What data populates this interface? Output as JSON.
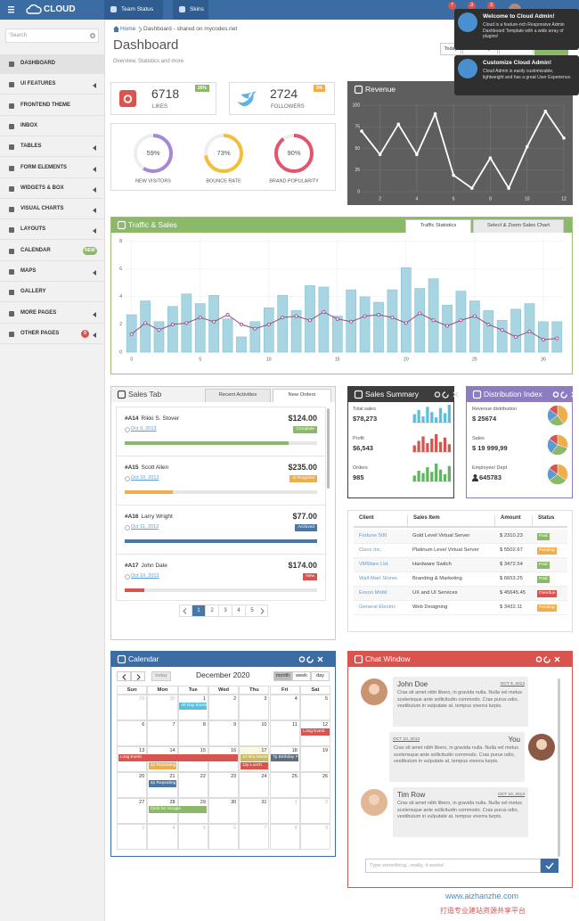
{
  "header": {
    "brand": "CLOUD",
    "menus": [
      "Team Status",
      "Skins"
    ],
    "badges": [
      "7",
      "3",
      "3"
    ]
  },
  "notifications": [
    {
      "title": "Welcome to Cloud Admin!",
      "text": "Cloud is a feature-rich Responsive Admin Dashboard Template with a wide array of plugins!"
    },
    {
      "title": "Customize Cloud Admin!",
      "text": "Cloud Admin is easily customizable, lightweight and has a great User Experience."
    }
  ],
  "sidebar": {
    "search": "Search",
    "items": [
      {
        "label": "DASHBOARD",
        "active": true
      },
      {
        "label": "UI FEATURES",
        "submenu": true
      },
      {
        "label": "FRONTEND THEME"
      },
      {
        "label": "INBOX"
      },
      {
        "label": "TABLES",
        "submenu": true
      },
      {
        "label": "FORM ELEMENTS",
        "submenu": true
      },
      {
        "label": "WIDGETS & BOX",
        "submenu": true
      },
      {
        "label": "VISUAL CHARTS",
        "submenu": true
      },
      {
        "label": "LAYOUTS",
        "submenu": true
      },
      {
        "label": "CALENDAR",
        "badge": "NEW",
        "badge_color": "#8cb86a"
      },
      {
        "label": "MAPS",
        "submenu": true
      },
      {
        "label": "GALLERY"
      },
      {
        "label": "MORE PAGES",
        "submenu": true
      },
      {
        "label": "OTHER PAGES",
        "submenu": true,
        "badge": "9",
        "badge_color": "#d9534f"
      }
    ]
  },
  "page": {
    "breadcrumb": [
      "Home",
      "Dashboard - shared on mycodes.net"
    ],
    "title": "Dashboard",
    "subtitle": "Overview, Statistics and more",
    "range_buttons": [
      "Today",
      "Last 7 Days",
      "Last month"
    ]
  },
  "social": [
    {
      "value": "6718",
      "label": "LIKES",
      "change": "26%",
      "color": "#8cb86a"
    },
    {
      "value": "2724",
      "label": "FOLLOWERS",
      "change": "5%",
      "color": "#f0ad4e"
    }
  ],
  "panels": {
    "sales_tab": "Sales Tab",
    "sales_tabs": [
      "Recent Activities",
      "New Orders"
    ],
    "sales_summary": "Sales Summary",
    "distribution": "Distribution Index"
  },
  "chart_data": [
    {
      "type": "donut",
      "categories": [
        "NEW VISITORS",
        "BOUNCE RATE",
        "BRAND POPULARITY"
      ],
      "values": [
        59,
        73,
        90
      ],
      "value_labels": [
        "59%",
        "73%",
        "90%"
      ],
      "colors": [
        "#a48ad4",
        "#f2c037",
        "#e2566d"
      ]
    },
    {
      "type": "line",
      "title": "Revenue",
      "x": [
        1,
        2,
        3,
        4,
        5,
        6,
        7,
        8,
        9,
        10,
        11,
        12
      ],
      "series": [
        {
          "color": "#ffffff",
          "values": [
            70,
            43,
            78,
            43,
            90,
            19,
            4,
            39,
            4,
            52,
            93,
            62
          ]
        }
      ],
      "xlim": [
        1,
        12
      ],
      "ylim": [
        0,
        100
      ],
      "xticks": [
        2,
        4,
        6,
        8,
        10,
        12
      ],
      "yticks": [
        0,
        25,
        50,
        75,
        100
      ],
      "grid": true
    },
    {
      "type": "combo",
      "title": "Traffic & Sales",
      "tabs": [
        "Traffic Statistics",
        "Select & Zoom Sales Chart"
      ],
      "x": [
        0,
        1,
        2,
        3,
        4,
        5,
        6,
        7,
        8,
        9,
        10,
        11,
        12,
        13,
        14,
        15,
        16,
        17,
        18,
        19,
        20,
        21,
        22,
        23,
        24,
        25,
        26,
        27,
        28,
        29,
        30,
        31
      ],
      "series": [
        {
          "type": "bar",
          "color": "#a8d5e2",
          "values": [
            2.7,
            3.7,
            2.2,
            3.3,
            4.2,
            3.5,
            4.1,
            2.4,
            1.1,
            2.2,
            3.2,
            4.1,
            3.0,
            4.8,
            4.7,
            2.6,
            4.5,
            4.0,
            3.6,
            4.5,
            6.1,
            4.6,
            5.3,
            3.4,
            4.4,
            3.7,
            3.0,
            2.3,
            3.1,
            3.5,
            2.2,
            2.2
          ]
        },
        {
          "type": "line",
          "color": "#9c4a7f",
          "values": [
            1.3,
            2.1,
            1.6,
            2.0,
            2.1,
            2.5,
            2.2,
            2.7,
            2.0,
            1.7,
            2.0,
            2.5,
            2.6,
            2.3,
            2.9,
            2.4,
            2.2,
            2.6,
            2.7,
            2.5,
            2.1,
            2.8,
            2.3,
            1.9,
            2.3,
            2.6,
            2.0,
            1.6,
            1.1,
            1.5,
            0.9,
            1.0
          ]
        }
      ],
      "xlim": [
        -0.5,
        31.5
      ],
      "ylim": [
        0,
        8.3
      ],
      "xticks": [
        0,
        5,
        10,
        15,
        20,
        25,
        30
      ],
      "yticks": [
        0,
        2,
        4,
        6,
        8
      ],
      "grid": true
    },
    {
      "type": "bar",
      "label": "Total sales",
      "value_label": "$78,273",
      "color": "#5bc0de",
      "values": [
        8,
        12,
        6,
        15,
        10,
        5,
        14,
        9,
        17
      ]
    },
    {
      "type": "bar",
      "label": "Profit",
      "value_label": "$6,543",
      "color": "#d9534f",
      "values": [
        6,
        10,
        14,
        8,
        12,
        16,
        9,
        13,
        7
      ]
    },
    {
      "type": "bar",
      "label": "Orders",
      "value_label": "985",
      "color": "#5cb85c",
      "values": [
        5,
        9,
        7,
        12,
        8,
        15,
        10,
        6,
        13
      ]
    },
    {
      "type": "pie",
      "label": "Revenue distribution",
      "value_label": "$ 25674",
      "values": [
        40,
        25,
        20,
        15
      ],
      "colors": [
        "#f0ad4e",
        "#8cb86a",
        "#5b9bd5",
        "#d9534f"
      ]
    },
    {
      "type": "pie",
      "label": "Sales",
      "value_label": "$ 19 999,99",
      "values": [
        30,
        30,
        25,
        15
      ],
      "colors": [
        "#f0ad4e",
        "#8cb86a",
        "#5b9bd5",
        "#d9534f"
      ]
    },
    {
      "type": "pie",
      "label": "Employee/ Dept",
      "value_label": "645783",
      "values": [
        35,
        30,
        20,
        15
      ],
      "colors": [
        "#f0ad4e",
        "#8cb86a",
        "#5b9bd5",
        "#d9534f"
      ]
    }
  ],
  "orders": [
    {
      "id": "#A14",
      "name": "Rikki S. Stover",
      "amount": "$124.00",
      "date": "Oct 9, 2013",
      "status": "Complete",
      "color": "#8cb86a",
      "progress": 85
    },
    {
      "id": "#A15",
      "name": "Scott Allen",
      "amount": "$235.00",
      "date": "Oct 10, 2013",
      "status": "In Progress",
      "color": "#f0ad4e",
      "progress": 25
    },
    {
      "id": "#A16",
      "name": "Larry Wright",
      "amount": "$77.00",
      "date": "Oct 11, 2013",
      "status": "Archived",
      "color": "#4a77a8",
      "progress": 100
    },
    {
      "id": "#A17",
      "name": "John Dale",
      "amount": "$174.00",
      "date": "Oct 10, 2013",
      "status": "New",
      "color": "#d9534f",
      "progress": 10
    }
  ],
  "pagination": [
    1,
    2,
    3,
    4,
    5
  ],
  "table": {
    "headers": [
      "Client",
      "Sales Item",
      "Amount",
      "Status"
    ],
    "rows": [
      [
        "Fortune 500",
        "Gold Level Virtual Server",
        "$ 2310.23",
        "Paid"
      ],
      [
        "Cisco Inc.",
        "Platinum Level Virtual Server",
        "$ 5502.67",
        "Pending"
      ],
      [
        "VMWare Ltd.",
        "Hardware Switch",
        "$ 3472.54",
        "Paid"
      ],
      [
        "Wall-Mart Stores",
        "Branding & Marketing",
        "$ 6653.25",
        "Paid"
      ],
      [
        "Exxon Mobil",
        "UX and UI Services",
        "$ 45645.45",
        "Overdue"
      ],
      [
        "General Electric",
        "Web Designing",
        "$ 3432.11",
        "Pending"
      ]
    ],
    "status_colors": {
      "Paid": "#8cb86a",
      "Pending": "#f0ad4e",
      "Overdue": "#d9534f"
    }
  },
  "calendar": {
    "title": "Calendar",
    "today": "today",
    "month": "December 2020",
    "views": [
      "month",
      "week",
      "day"
    ],
    "weekdays": [
      "Sun",
      "Mon",
      "Tue",
      "Wed",
      "Thu",
      "Fri",
      "Sat"
    ],
    "weeks": [
      [
        29,
        30,
        1,
        2,
        3,
        4,
        5
      ],
      [
        6,
        7,
        8,
        9,
        10,
        11,
        12
      ],
      [
        13,
        14,
        15,
        16,
        17,
        18,
        19
      ],
      [
        20,
        21,
        22,
        23,
        24,
        25,
        26
      ],
      [
        27,
        28,
        29,
        30,
        31,
        1,
        2
      ],
      [
        3,
        4,
        5,
        6,
        7,
        8,
        9
      ]
    ],
    "today_date": 17,
    "events": [
      {
        "title": "All Day Event",
        "start": 1,
        "end": 1,
        "color": "#5bc0de"
      },
      {
        "title": "Long Event",
        "start": 12,
        "end": 16,
        "color": "#d9534f"
      },
      {
        "title": "4p Repeating Event",
        "start": 14,
        "end": 14,
        "color": "#f0ad4e"
      },
      {
        "title": "10:30a Meeting",
        "start": 17,
        "end": 17,
        "color": "#c9b968"
      },
      {
        "title": "12p Lunch",
        "start": 17,
        "end": 17,
        "color": "#d9534f"
      },
      {
        "title": "7p Birthday Party",
        "start": 18,
        "end": 18,
        "color": "#5d6d7e"
      },
      {
        "title": "4p Repeating Event",
        "start": 21,
        "end": 21,
        "color": "#4a77a8"
      },
      {
        "title": "Click for Google",
        "start": 28,
        "end": 29,
        "color": "#8cb86a"
      }
    ]
  },
  "chat": {
    "title": "Chat Window",
    "messages": [
      {
        "name": "John Doe",
        "date": "OCT 9, 2013",
        "self": false,
        "text": "Cras sit amet nibh libero, in gravida nulla. Nulla vel metus scelerisque ante sollicitudin commodo. Cras purus odio, vestibulum in vulputate at, tempus viverra turpis."
      },
      {
        "name": "You",
        "date": "OCT 10, 2013",
        "self": true,
        "text": "Cras sit amet nibh libero, in gravida nulla. Nulla vel metus scelerisque ante sollicitudin commodo. Cras purus odio, vestibulum in vulputate at, tempus viverra turpis."
      },
      {
        "name": "Tim Row",
        "date": "OCT 10, 2013",
        "self": false,
        "text": "Cras sit amet nibh libero, in gravida nulla. Nulla vel metus scelerisque ante sollicitudin commodo. Cras purus odio, vestibulum in vulputate at, tempus viverra turpis."
      }
    ],
    "placeholder": "Type something...really, it works!"
  },
  "watermark": {
    "url": "www.aizhanzhe.com",
    "tagline": "打造专业建站资源共享平台"
  }
}
